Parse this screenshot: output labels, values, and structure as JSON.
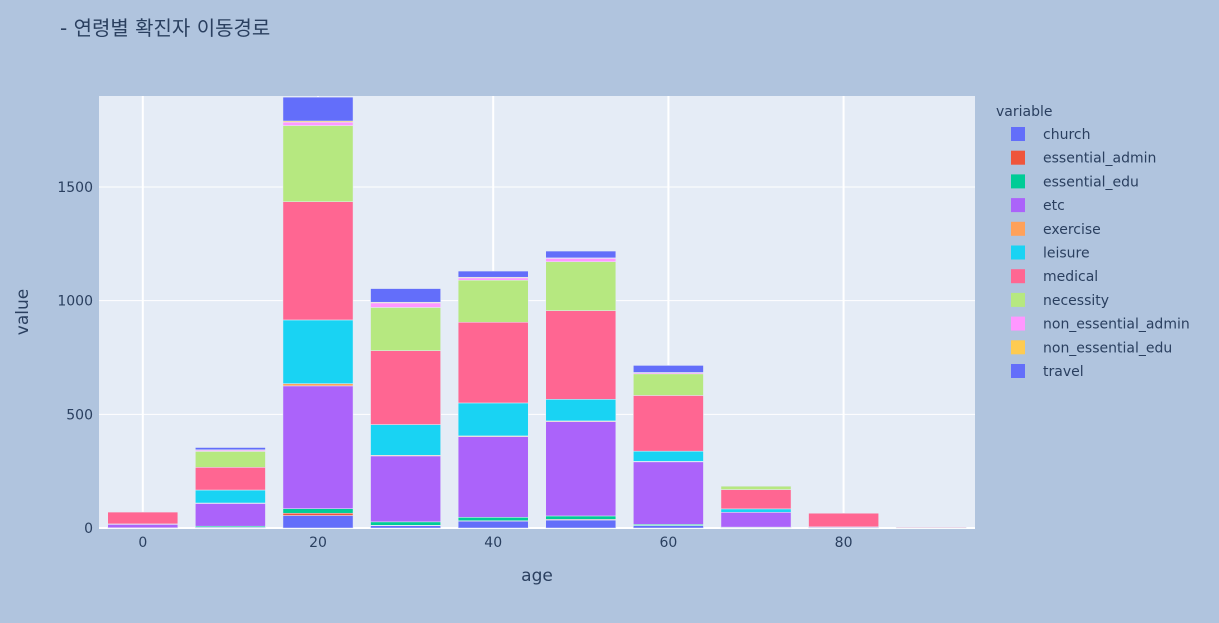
{
  "chart_data": {
    "type": "bar",
    "stacked": true,
    "title": "- 연령별 확진자 이동경로",
    "xlabel": "age",
    "ylabel": "value",
    "x": [
      0,
      10,
      20,
      30,
      40,
      50,
      60,
      70,
      80,
      90
    ],
    "xticks": [
      0,
      20,
      40,
      60,
      80
    ],
    "yticks": [
      0,
      500,
      1000,
      1500
    ],
    "ylim": [
      0,
      1900
    ],
    "xlim": [
      -5,
      95
    ],
    "grid": true,
    "legend_title": "variable",
    "legend_position": "right",
    "series": [
      {
        "name": "church",
        "color": "#636efa",
        "values": [
          0,
          3,
          55,
          10,
          30,
          35,
          10,
          2,
          0,
          0
        ]
      },
      {
        "name": "essential_admin",
        "color": "#ef553b",
        "values": [
          0,
          0,
          10,
          2,
          2,
          3,
          1,
          0,
          0,
          0
        ]
      },
      {
        "name": "essential_edu",
        "color": "#00cc96",
        "values": [
          1,
          5,
          20,
          15,
          15,
          15,
          5,
          2,
          0,
          0
        ]
      },
      {
        "name": "etc",
        "color": "#ab63fa",
        "values": [
          15,
          100,
          540,
          290,
          355,
          415,
          275,
          65,
          3,
          1
        ]
      },
      {
        "name": "exercise",
        "color": "#ffa15a",
        "values": [
          0,
          2,
          10,
          3,
          3,
          3,
          2,
          0,
          0,
          0
        ]
      },
      {
        "name": "leisure",
        "color": "#19d3f3",
        "values": [
          2,
          57,
          280,
          135,
          145,
          95,
          45,
          15,
          2,
          0
        ]
      },
      {
        "name": "medical",
        "color": "#ff6692",
        "values": [
          52,
          100,
          520,
          325,
          355,
          390,
          245,
          85,
          60,
          3
        ]
      },
      {
        "name": "necessity",
        "color": "#b6e880",
        "values": [
          0,
          70,
          335,
          190,
          185,
          215,
          95,
          15,
          0,
          0
        ]
      },
      {
        "name": "non_essential_admin",
        "color": "#ff97ff",
        "values": [
          0,
          5,
          15,
          20,
          10,
          15,
          5,
          0,
          0,
          0
        ]
      },
      {
        "name": "non_essential_edu",
        "color": "#fecb52",
        "values": [
          0,
          2,
          5,
          3,
          3,
          2,
          1,
          0,
          0,
          0
        ]
      },
      {
        "name": "travel",
        "color": "#636efa",
        "values": [
          0,
          10,
          105,
          60,
          27,
          30,
          31,
          2,
          0,
          0
        ]
      }
    ]
  }
}
